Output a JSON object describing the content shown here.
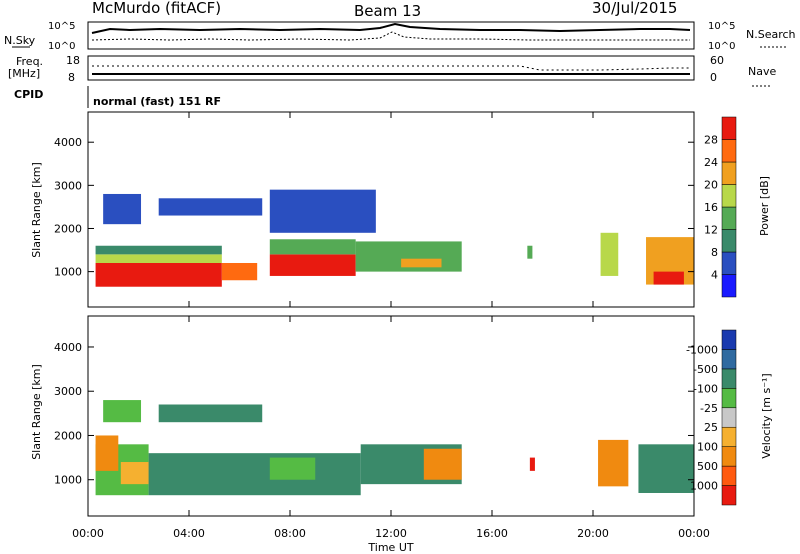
{
  "header": {
    "station": "McMurdo (fitACF)",
    "beam": "Beam 13",
    "date": "30/Jul/2015"
  },
  "top_panels": {
    "nsky_label": "N.Sky",
    "nsky_tick_high": "10^5",
    "nsky_tick_low": "10^0",
    "nsky_right_high": "10^5",
    "nsky_right_low": "10^0",
    "nsearch_label": "N.Search",
    "freq_label": "Freq.",
    "freq_unit": "[MHz]",
    "freq_high": "18",
    "freq_low": "8",
    "nave_label": "Nave",
    "nave_high": "60",
    "nave_low": "0",
    "cpid_label": "CPID",
    "cpid_text": "normal (fast) 151 RF"
  },
  "x_axis": {
    "title": "Time UT",
    "ticks": [
      "00:00",
      "04:00",
      "08:00",
      "12:00",
      "16:00",
      "20:00",
      "00:00"
    ]
  },
  "chart_data": [
    {
      "type": "heatmap",
      "title": "Power",
      "xlabel": "Time UT",
      "ylabel": "Slant Range [km]",
      "xlim": [
        0,
        24
      ],
      "ylim": [
        180,
        4700
      ],
      "yticks": [
        1000,
        2000,
        3000,
        4000
      ],
      "colorbar": {
        "label": "Power [dB]",
        "ticks": [
          "4",
          "8",
          "12",
          "16",
          "20",
          "24",
          "28"
        ],
        "colors": [
          "#1a1aff",
          "#2a4fc0",
          "#3a8a6a",
          "#55aa55",
          "#b8d84a",
          "#f0a020",
          "#ff6a10",
          "#e81a10"
        ]
      },
      "regions": [
        {
          "t0": 0.3,
          "t1": 5.3,
          "r0": 650,
          "r1": 1200,
          "level": 7
        },
        {
          "t0": 0.3,
          "t1": 5.3,
          "r0": 1200,
          "r1": 1400,
          "level": 4
        },
        {
          "t0": 0.3,
          "t1": 5.3,
          "r0": 1400,
          "r1": 1600,
          "level": 2
        },
        {
          "t0": 5.3,
          "t1": 6.7,
          "r0": 800,
          "r1": 1200,
          "level": 6
        },
        {
          "t0": 7.2,
          "t1": 10.6,
          "r0": 900,
          "r1": 1400,
          "level": 7
        },
        {
          "t0": 7.2,
          "t1": 10.6,
          "r0": 1400,
          "r1": 1750,
          "level": 3
        },
        {
          "t0": 10.6,
          "t1": 14.8,
          "r0": 1000,
          "r1": 1700,
          "level": 3
        },
        {
          "t0": 12.4,
          "t1": 14.0,
          "r0": 1100,
          "r1": 1300,
          "level": 5
        },
        {
          "t0": 0.6,
          "t1": 2.1,
          "r0": 2100,
          "r1": 2800,
          "level": 1
        },
        {
          "t0": 2.8,
          "t1": 6.9,
          "r0": 2300,
          "r1": 2700,
          "level": 1
        },
        {
          "t0": 7.2,
          "t1": 11.4,
          "r0": 1900,
          "r1": 2900,
          "level": 1
        },
        {
          "t0": 17.4,
          "t1": 17.6,
          "r0": 1300,
          "r1": 1600,
          "level": 3
        },
        {
          "t0": 20.3,
          "t1": 21.0,
          "r0": 900,
          "r1": 1900,
          "level": 4
        },
        {
          "t0": 22.1,
          "t1": 24.0,
          "r0": 700,
          "r1": 1800,
          "level": 5
        },
        {
          "t0": 22.4,
          "t1": 23.6,
          "r0": 700,
          "r1": 1000,
          "level": 7
        }
      ]
    },
    {
      "type": "heatmap",
      "title": "Velocity",
      "xlabel": "Time UT",
      "ylabel": "Slant Range [km]",
      "xlim": [
        0,
        24
      ],
      "ylim": [
        180,
        4700
      ],
      "yticks": [
        1000,
        2000,
        3000,
        4000
      ],
      "colorbar": {
        "label": "Velocity [m s⁻¹]",
        "ticks": [
          "1000",
          "500",
          "100",
          "25",
          "-25",
          "-100",
          "-500",
          "-1000"
        ],
        "colors": [
          "#e81a10",
          "#ff5a10",
          "#f08a10",
          "#f5b030",
          "#c8c8c8",
          "#55bb44",
          "#3a8a6a",
          "#2f6aa0",
          "#1a3aaf"
        ]
      },
      "regions": [
        {
          "t0": 0.3,
          "t1": 2.4,
          "r0": 650,
          "r1": 1800,
          "level": 5
        },
        {
          "t0": 0.3,
          "t1": 1.2,
          "r0": 1200,
          "r1": 2000,
          "level": 2
        },
        {
          "t0": 1.3,
          "t1": 2.5,
          "r0": 900,
          "r1": 1400,
          "level": 3
        },
        {
          "t0": 2.4,
          "t1": 10.8,
          "r0": 650,
          "r1": 1600,
          "level": 6
        },
        {
          "t0": 7.2,
          "t1": 9.0,
          "r0": 1000,
          "r1": 1500,
          "level": 5
        },
        {
          "t0": 10.8,
          "t1": 14.8,
          "r0": 900,
          "r1": 1800,
          "level": 6
        },
        {
          "t0": 13.3,
          "t1": 14.8,
          "r0": 1000,
          "r1": 1700,
          "level": 2
        },
        {
          "t0": 17.5,
          "t1": 17.7,
          "r0": 1200,
          "r1": 1500,
          "level": 0
        },
        {
          "t0": 20.2,
          "t1": 21.4,
          "r0": 850,
          "r1": 1900,
          "level": 2
        },
        {
          "t0": 21.8,
          "t1": 24.0,
          "r0": 700,
          "r1": 1800,
          "level": 6
        },
        {
          "t0": 2.8,
          "t1": 6.9,
          "r0": 2300,
          "r1": 2700,
          "level": 6
        },
        {
          "t0": 0.6,
          "t1": 2.1,
          "r0": 2300,
          "r1": 2800,
          "level": 5
        }
      ]
    }
  ]
}
